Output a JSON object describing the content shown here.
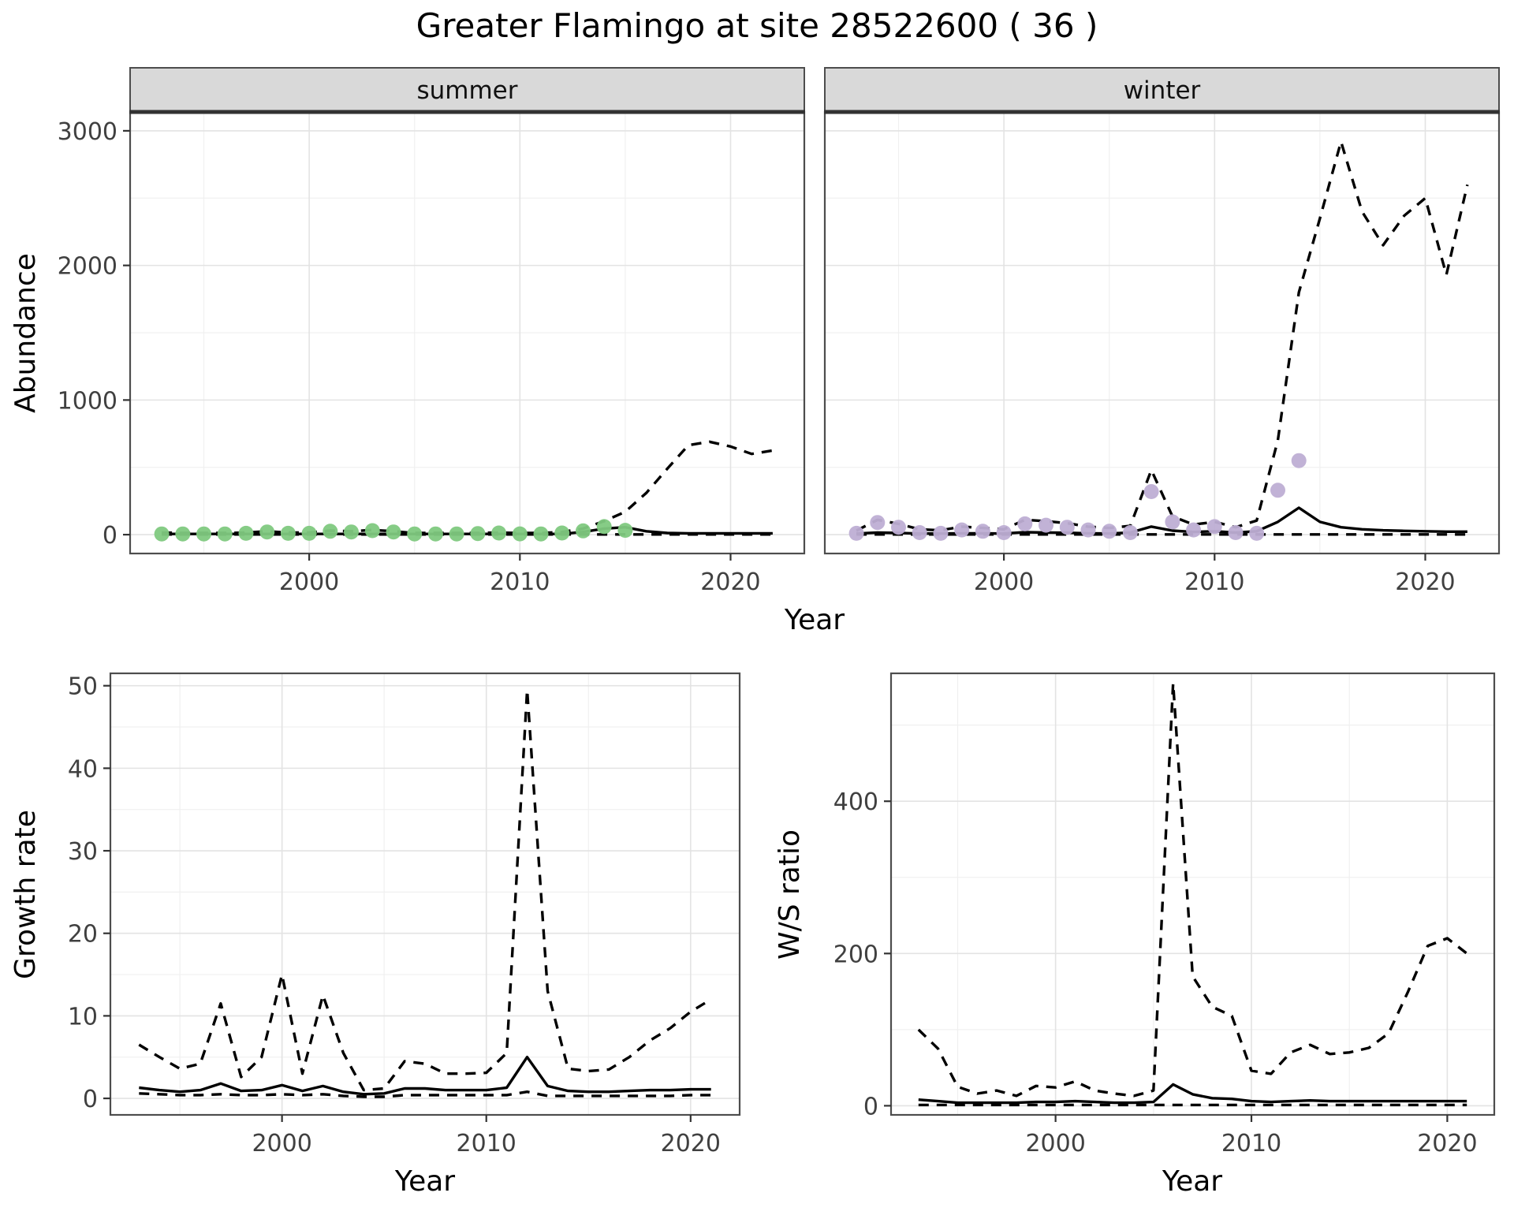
{
  "title": "Greater Flamingo at site 28522600 ( 36 )",
  "colors": {
    "summer_points": "#7FC97F",
    "winter_points": "#BEAED4",
    "line": "#000000",
    "strip_background": "#d9d9d9",
    "panel_border": "#4d4d4d",
    "grid_major": "#e3e3e3",
    "grid_minor": "#f0f0f0",
    "axis_text": "#404040"
  },
  "chart_data": [
    {
      "id": "abundance",
      "type": "line",
      "title": "",
      "xlabel": "Year",
      "ylabel": "Abundance",
      "xlim": [
        1991.5,
        2023.5
      ],
      "ylim": [
        -140,
        3140
      ],
      "xticks": [
        2000,
        2010,
        2020
      ],
      "yticks": [
        0,
        1000,
        2000,
        3000
      ],
      "grid": true,
      "legend": "none",
      "x": [
        1993,
        1994,
        1995,
        1996,
        1997,
        1998,
        1999,
        2000,
        2001,
        2002,
        2003,
        2004,
        2005,
        2006,
        2007,
        2008,
        2009,
        2010,
        2011,
        2012,
        2013,
        2014,
        2015,
        2016,
        2017,
        2018,
        2019,
        2020,
        2021,
        2022
      ],
      "facets": [
        {
          "label": "summer",
          "series": [
            {
              "name": "model-fit",
              "style": "solid",
              "y": [
                5,
                5,
                5,
                5,
                5,
                5,
                5,
                5,
                5,
                5,
                5,
                5,
                5,
                5,
                5,
                5,
                5,
                5,
                5,
                5,
                20,
                45,
                55,
                25,
                12,
                10,
                10,
                10,
                10,
                10
              ]
            },
            {
              "name": "ci-upper",
              "style": "dashed",
              "y": [
                15,
                12,
                12,
                12,
                15,
                25,
                15,
                15,
                30,
                25,
                35,
                25,
                12,
                12,
                12,
                12,
                15,
                12,
                12,
                20,
                45,
                100,
                170,
                310,
                490,
                665,
                690,
                655,
                600,
                625
              ]
            },
            {
              "name": "ci-lower",
              "style": "dashed",
              "y": [
                2,
                2,
                2,
                2,
                2,
                2,
                2,
                2,
                2,
                2,
                2,
                2,
                2,
                2,
                2,
                2,
                2,
                2,
                2,
                2,
                2,
                2,
                2,
                2,
                2,
                2,
                2,
                2,
                2,
                2
              ]
            }
          ],
          "points": {
            "name": "observed-counts-summer",
            "color": "#7FC97F",
            "x": [
              1993,
              1994,
              1995,
              1996,
              1997,
              1998,
              1999,
              2000,
              2001,
              2002,
              2003,
              2004,
              2005,
              2006,
              2007,
              2008,
              2009,
              2010,
              2011,
              2012,
              2013,
              2014,
              2015
            ],
            "y": [
              5,
              5,
              5,
              5,
              10,
              20,
              10,
              10,
              25,
              20,
              30,
              20,
              5,
              5,
              5,
              8,
              12,
              6,
              5,
              12,
              28,
              60,
              32
            ]
          }
        },
        {
          "label": "winter",
          "series": [
            {
              "name": "model-fit",
              "style": "solid",
              "y": [
                8,
                15,
                12,
                8,
                8,
                10,
                10,
                8,
                18,
                16,
                14,
                10,
                8,
                15,
                60,
                30,
                20,
                25,
                15,
                25,
                95,
                200,
                95,
                55,
                40,
                32,
                28,
                25,
                22,
                22
              ]
            },
            {
              "name": "ci-upper",
              "style": "dashed",
              "y": [
                30,
                110,
                80,
                40,
                32,
                60,
                50,
                40,
                110,
                100,
                85,
                60,
                50,
                65,
                480,
                135,
                75,
                95,
                55,
                105,
                700,
                1800,
                2350,
                2920,
                2400,
                2150,
                2370,
                2500,
                1930,
                2600
              ]
            },
            {
              "name": "ci-lower",
              "style": "dashed",
              "y": [
                2,
                2,
                2,
                2,
                2,
                2,
                2,
                2,
                2,
                2,
                2,
                2,
                2,
                2,
                2,
                2,
                2,
                2,
                2,
                2,
                2,
                2,
                2,
                2,
                2,
                2,
                2,
                2,
                2,
                2
              ]
            }
          ],
          "points": {
            "name": "observed-counts-winter",
            "color": "#BEAED4",
            "x": [
              1993,
              1994,
              1995,
              1996,
              1997,
              1998,
              1999,
              2000,
              2001,
              2002,
              2003,
              2004,
              2005,
              2006,
              2007,
              2008,
              2009,
              2010,
              2011,
              2012,
              2013,
              2014
            ],
            "y": [
              10,
              90,
              55,
              15,
              10,
              35,
              25,
              15,
              80,
              70,
              55,
              35,
              25,
              15,
              320,
              95,
              35,
              60,
              15,
              10,
              330,
              550
            ]
          }
        }
      ]
    },
    {
      "id": "growth",
      "type": "line",
      "title": "",
      "xlabel": "Year",
      "ylabel": "Growth rate",
      "xlim": [
        1991.6,
        2022.4
      ],
      "ylim": [
        -2,
        51.5
      ],
      "xticks": [
        2000,
        2010,
        2020
      ],
      "yticks": [
        0,
        10,
        20,
        30,
        40,
        50
      ],
      "grid": true,
      "legend": "none",
      "x": [
        1993,
        1994,
        1995,
        1996,
        1997,
        1998,
        1999,
        2000,
        2001,
        2002,
        2003,
        2004,
        2005,
        2006,
        2007,
        2008,
        2009,
        2010,
        2011,
        2012,
        2013,
        2014,
        2015,
        2016,
        2017,
        2018,
        2019,
        2020,
        2021
      ],
      "facets": [
        {
          "label": null,
          "series": [
            {
              "name": "growth-rate-fit",
              "style": "solid",
              "y": [
                1.3,
                1,
                0.8,
                1,
                1.8,
                0.9,
                1,
                1.6,
                0.9,
                1.5,
                0.8,
                0.5,
                0.6,
                1.2,
                1.2,
                1,
                1,
                1,
                1.3,
                5,
                1.5,
                0.9,
                0.8,
                0.8,
                0.9,
                1,
                1,
                1.1,
                1.1
              ]
            },
            {
              "name": "ci-upper",
              "style": "dashed",
              "y": [
                6.5,
                5,
                3.6,
                4.2,
                11.5,
                2.6,
                5,
                15,
                3,
                12.5,
                5.5,
                1,
                1.2,
                4.5,
                4.2,
                3,
                3,
                3.1,
                5.5,
                49.5,
                13,
                3.6,
                3.3,
                3.5,
                5,
                7,
                8.5,
                10.5,
                12
              ]
            },
            {
              "name": "ci-lower",
              "style": "dashed",
              "y": [
                0.6,
                0.5,
                0.4,
                0.4,
                0.5,
                0.4,
                0.4,
                0.5,
                0.4,
                0.5,
                0.3,
                0.2,
                0.2,
                0.4,
                0.4,
                0.4,
                0.4,
                0.4,
                0.4,
                0.8,
                0.3,
                0.3,
                0.3,
                0.3,
                0.3,
                0.3,
                0.3,
                0.4,
                0.4
              ]
            }
          ],
          "points": null
        }
      ]
    },
    {
      "id": "ws",
      "type": "line",
      "title": "",
      "xlabel": "Year",
      "ylabel": "W/S ratio",
      "xlim": [
        1991.6,
        2022.4
      ],
      "ylim": [
        -12,
        568
      ],
      "xticks": [
        2000,
        2010,
        2020
      ],
      "yticks": [
        0,
        200,
        400
      ],
      "grid": true,
      "legend": "none",
      "x": [
        1993,
        1994,
        1995,
        1996,
        1997,
        1998,
        1999,
        2000,
        2001,
        2002,
        2003,
        2004,
        2005,
        2006,
        2007,
        2008,
        2009,
        2010,
        2011,
        2012,
        2013,
        2014,
        2015,
        2016,
        2017,
        2018,
        2019,
        2020,
        2021
      ],
      "facets": [
        {
          "label": null,
          "series": [
            {
              "name": "ws-ratio-fit",
              "style": "solid",
              "y": [
                8,
                6,
                4,
                4,
                4,
                4,
                5,
                5,
                6,
                5,
                4,
                4,
                5,
                28,
                15,
                10,
                9,
                6,
                5,
                6,
                7,
                6,
                6,
                6,
                6,
                6,
                6,
                6,
                6
              ]
            },
            {
              "name": "ci-upper",
              "style": "dashed",
              "y": [
                100,
                75,
                25,
                16,
                20,
                13,
                26,
                24,
                32,
                20,
                16,
                13,
                20,
                555,
                170,
                130,
                118,
                46,
                42,
                70,
                80,
                68,
                70,
                76,
                95,
                150,
                210,
                220,
                200
              ]
            },
            {
              "name": "ci-lower",
              "style": "dashed",
              "y": [
                1,
                1,
                1,
                1,
                1,
                1,
                1,
                1,
                1,
                1,
                1,
                1,
                1,
                1,
                1,
                1,
                1,
                1,
                1,
                1,
                1,
                1,
                1,
                1,
                1,
                1,
                1,
                1,
                1
              ]
            }
          ],
          "points": null
        }
      ]
    }
  ]
}
